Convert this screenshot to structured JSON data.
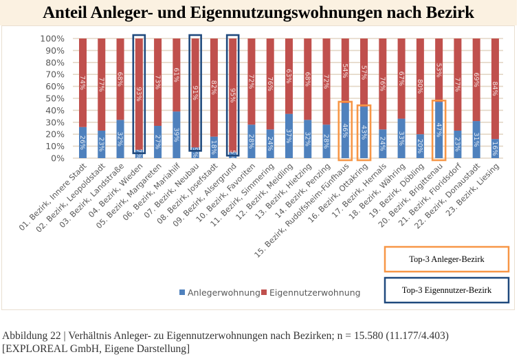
{
  "colors": {
    "anleger": "#4f81bd",
    "eigennutzer": "#c0504d",
    "grid": "#e3d6c5",
    "top_anleger_box": "#f79646",
    "top_eigennutzer_box": "#1f497d"
  },
  "caption": {
    "line1": "Abbildung 22 | Verhältnis Anleger- zu Eigennutzerwohnungen nach Bezirken; n = 15.580 (11.177/4.403)",
    "line2": "[EXPLOREAL GmbH, Eigene Darstellung]"
  },
  "chart_data": {
    "type": "bar",
    "stacked": true,
    "percent": true,
    "title": "Anteil Anleger- und Eigennutzungswohnungen nach Bezirk",
    "xlabel": "",
    "ylabel": "",
    "ylim": [
      0,
      100
    ],
    "yticks": [
      "0%",
      "10%",
      "20%",
      "30%",
      "40%",
      "50%",
      "60%",
      "70%",
      "80%",
      "90%",
      "100%"
    ],
    "grid": true,
    "legend_position": "bottom",
    "categories": [
      "01. Bezirk, Innere Stadt",
      "02. Bezirk, Leopoldstadt",
      "03. Bezirk, Landstraße",
      "04. Bezirk, Wieden",
      "05. Bezirk, Margareten",
      "06. Bezirk, Mariahilf",
      "07. Bezirk, Neubau",
      "08. Bezirk, Josefstadt",
      "09. Bezirk, Alsergrund",
      "10. Bezirk, Favoriten",
      "11. Bezirk, Simmering",
      "12. Bezirk, Meidling",
      "13. Bezirk, Hietzing",
      "14. Bezirk, Penzing",
      "15. Bezirk, Rudolfsheim-Fünfhaus",
      "16. Bezirk, Ottakring",
      "17. Bezirk, Hernals",
      "18. Bezirk, Währing",
      "19. Bezirk, Döbling",
      "20. Bezirk, Brigittenau",
      "21. Bezirk, Floridsdorf",
      "22. Bezirk, Donaustadt",
      "23. Bezirk, Liesing"
    ],
    "series": [
      {
        "name": "Anlegerwohnung",
        "values": [
          26,
          23,
          32,
          7,
          27,
          39,
          9,
          18,
          5,
          28,
          24,
          37,
          32,
          28,
          46,
          43,
          24,
          33,
          20,
          47,
          23,
          31,
          16
        ],
        "labels": [
          "26%",
          "23%",
          "32%",
          "7%",
          "27%",
          "39%",
          "9%",
          "18%",
          "5%",
          "28%",
          "24%",
          "37%",
          "32%",
          "28%",
          "46%",
          "43%",
          "24%",
          "33%",
          "20%",
          "47%",
          "23%",
          "31%",
          "16%"
        ]
      },
      {
        "name": "Eigennutzerwohnung",
        "values": [
          74,
          77,
          68,
          93,
          73,
          61,
          91,
          82,
          95,
          72,
          76,
          63,
          68,
          72,
          54,
          57,
          76,
          67,
          80,
          53,
          77,
          69,
          84
        ],
        "labels": [
          "74%",
          "77%",
          "68%",
          "93%",
          "73%",
          "61%",
          "91%",
          "82%",
          "95%",
          "72%",
          "76%",
          "63%",
          "68%",
          "72%",
          "54%",
          "57%",
          "76%",
          "67%",
          "80%",
          "53%",
          "77%",
          "69%",
          "84%"
        ]
      }
    ],
    "annotations": {
      "top3_anleger": {
        "label": "Top-3 Anleger-Bezirk",
        "category_indices": [
          14,
          15,
          19
        ]
      },
      "top3_eigennutzer": {
        "label": "Top-3 Eigennutzer-Bezirk",
        "category_indices": [
          3,
          6,
          8
        ]
      }
    }
  }
}
